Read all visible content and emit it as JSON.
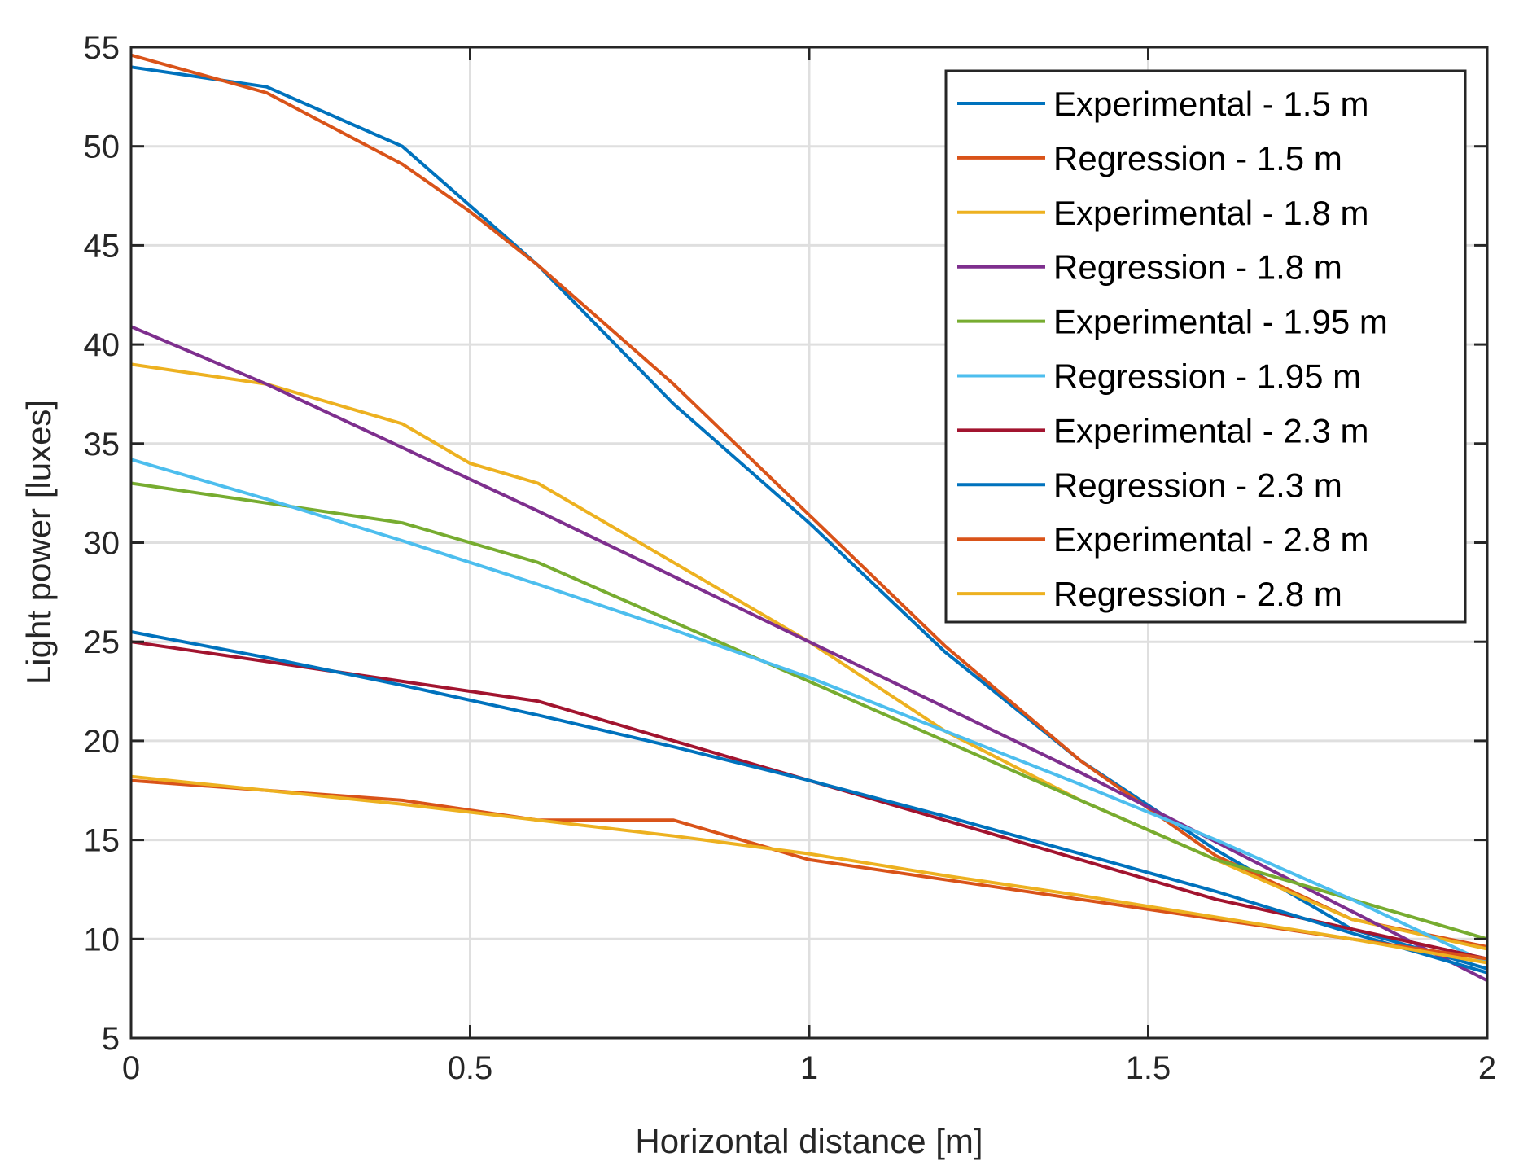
{
  "chart_data": {
    "type": "line",
    "title": "",
    "xlabel": "Horizontal distance [m]",
    "ylabel": "Light power [luxes]",
    "xlim": [
      0,
      2
    ],
    "ylim": [
      5,
      55
    ],
    "xticks": [
      0,
      0.5,
      1,
      1.5,
      2
    ],
    "xtick_labels": [
      "0",
      "0.5",
      "1",
      "1.5",
      "2"
    ],
    "yticks": [
      5,
      10,
      15,
      20,
      25,
      30,
      35,
      40,
      45,
      50,
      55
    ],
    "ytick_labels": [
      "5",
      "10",
      "15",
      "20",
      "25",
      "30",
      "35",
      "40",
      "45",
      "50",
      "55"
    ],
    "grid": true,
    "legend_position": "top-right",
    "series": [
      {
        "name": "Experimental - 1.5 m",
        "color": "#0072BD",
        "x": [
          0,
          0.2,
          0.4,
          0.6,
          0.8,
          1.0,
          1.2,
          1.4,
          1.6,
          1.8,
          2.0
        ],
        "y": [
          54,
          53,
          50,
          44,
          37,
          31,
          24.5,
          19,
          14.5,
          10.5,
          8.5
        ]
      },
      {
        "name": "Regression - 1.5 m",
        "color": "#D95319",
        "x": [
          0,
          0.2,
          0.4,
          0.5,
          0.6,
          0.8,
          1.0,
          1.2,
          1.4,
          1.6,
          1.8,
          2.0
        ],
        "y": [
          54.6,
          52.7,
          49.1,
          46.7,
          44.0,
          38.0,
          31.4,
          24.8,
          19.0,
          14.2,
          11.0,
          9.6
        ]
      },
      {
        "name": "Experimental - 1.8 m",
        "color": "#EDB120",
        "x": [
          0,
          0.2,
          0.4,
          0.5,
          0.6,
          0.8,
          1.0,
          1.2,
          1.4,
          1.6,
          1.8,
          2.0
        ],
        "y": [
          39,
          38,
          36,
          34,
          33,
          29,
          25,
          20.5,
          17,
          14,
          11,
          9.5
        ]
      },
      {
        "name": "Regression - 1.8 m",
        "color": "#7E2F8E",
        "x": [
          0,
          0.2,
          0.4,
          0.6,
          0.8,
          1.0,
          1.2,
          1.4,
          1.6,
          1.8,
          2.0
        ],
        "y": [
          40.9,
          38.0,
          34.8,
          31.6,
          28.3,
          25.0,
          21.7,
          18.4,
          14.9,
          11.4,
          7.9
        ]
      },
      {
        "name": "Experimental - 1.95 m",
        "color": "#77AC30",
        "x": [
          0,
          0.2,
          0.4,
          0.6,
          0.8,
          1.0,
          1.2,
          1.4,
          1.6,
          1.8,
          2.0
        ],
        "y": [
          33,
          32,
          31,
          29,
          26,
          23,
          20,
          17,
          14,
          12,
          10
        ]
      },
      {
        "name": "Regression - 1.95 m",
        "color": "#4DBEEE",
        "x": [
          0,
          0.2,
          0.4,
          0.6,
          0.8,
          1.0,
          1.2,
          1.4,
          1.6,
          1.8,
          2.0
        ],
        "y": [
          34.2,
          32.2,
          30.1,
          27.9,
          25.6,
          23.2,
          20.5,
          17.8,
          15.0,
          12.0,
          8.8
        ]
      },
      {
        "name": "Experimental - 2.3 m",
        "color": "#A2142F",
        "x": [
          0,
          0.2,
          0.4,
          0.6,
          0.8,
          1.0,
          1.2,
          1.4,
          1.6,
          1.8,
          2.0
        ],
        "y": [
          25,
          24,
          23,
          22,
          20,
          18,
          16,
          14,
          12,
          10.5,
          9
        ]
      },
      {
        "name": "Regression - 2.3 m",
        "color": "#0072BD",
        "x": [
          0,
          0.2,
          0.4,
          0.6,
          0.8,
          1.0,
          1.2,
          1.4,
          1.6,
          1.8,
          2.0
        ],
        "y": [
          25.5,
          24.2,
          22.8,
          21.3,
          19.7,
          18.0,
          16.2,
          14.3,
          12.4,
          10.3,
          8.3
        ]
      },
      {
        "name": "Experimental - 2.8 m",
        "color": "#D95319",
        "x": [
          0,
          0.2,
          0.4,
          0.6,
          0.8,
          1.0,
          1.2,
          1.4,
          1.6,
          1.8,
          2.0
        ],
        "y": [
          18,
          17.5,
          17,
          16,
          16,
          14,
          13,
          12,
          11,
          10,
          9
        ]
      },
      {
        "name": "Regression - 2.8 m",
        "color": "#EDB120",
        "x": [
          0,
          0.2,
          0.4,
          0.6,
          0.8,
          1.0,
          1.2,
          1.4,
          1.6,
          1.8,
          2.0
        ],
        "y": [
          18.2,
          17.5,
          16.8,
          16.0,
          15.2,
          14.3,
          13.2,
          12.2,
          11.1,
          10.0,
          8.8
        ]
      }
    ]
  }
}
